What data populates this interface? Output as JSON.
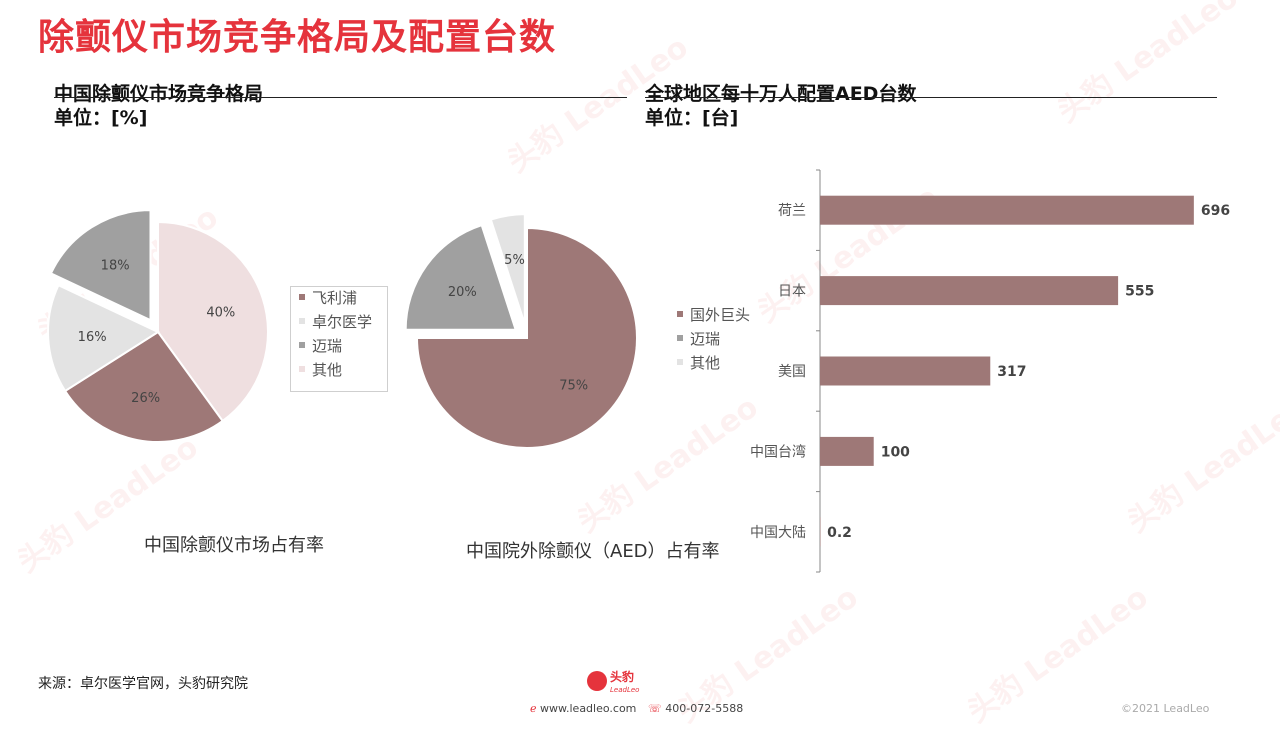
{
  "title": "除颤仪市场竞争格局及配置台数",
  "left_section": {
    "title": "中国除颤仪市场竞争格局",
    "unit": "单位：[%]"
  },
  "right_section": {
    "title": "全球地区每十万人配置AED台数",
    "unit": "单位：[台]"
  },
  "chart_data": [
    {
      "type": "pie",
      "title": "中国除颤仪市场占有率",
      "labels": [
        "飞利浦",
        "卓尔医学",
        "迈瑞",
        "其他"
      ],
      "values": [
        40,
        26,
        16,
        18
      ],
      "value_labels": [
        "40%",
        "26%",
        "16%",
        "18%"
      ],
      "colors": [
        "#efdfe0",
        "#9e7877",
        "#e3e3e3",
        "#a0a0a0"
      ],
      "exploded": [
        "其他"
      ]
    },
    {
      "type": "pie",
      "title": "中国院外除颤仪（AED）占有率",
      "labels": [
        "国外巨头",
        "迈瑞",
        "其他"
      ],
      "values": [
        75,
        20,
        5
      ],
      "value_labels": [
        "75%",
        "20%",
        "5%"
      ],
      "colors": [
        "#9e7877",
        "#a0a0a0",
        "#e3e3e3"
      ],
      "exploded": [
        "迈瑞",
        "其他"
      ]
    },
    {
      "type": "bar",
      "orientation": "horizontal",
      "categories": [
        "荷兰",
        "日本",
        "美国",
        "中国台湾",
        "中国大陆"
      ],
      "values": [
        696,
        555,
        317,
        100,
        0.2
      ],
      "value_labels": [
        "696",
        "555",
        "317",
        "100",
        "0.2"
      ],
      "color": "#9e7877",
      "xlim": [
        0,
        700
      ]
    }
  ],
  "footer": {
    "source": "来源：卓尔医学官网，头豹研究院",
    "website": "www.leadleo.com",
    "phone": "400-072-5588",
    "copyright": "©2021 LeadLeo",
    "logo_text": "头豹",
    "logo_sub": "LeadLeo"
  },
  "watermark_text": "头豹 LeadLeo"
}
